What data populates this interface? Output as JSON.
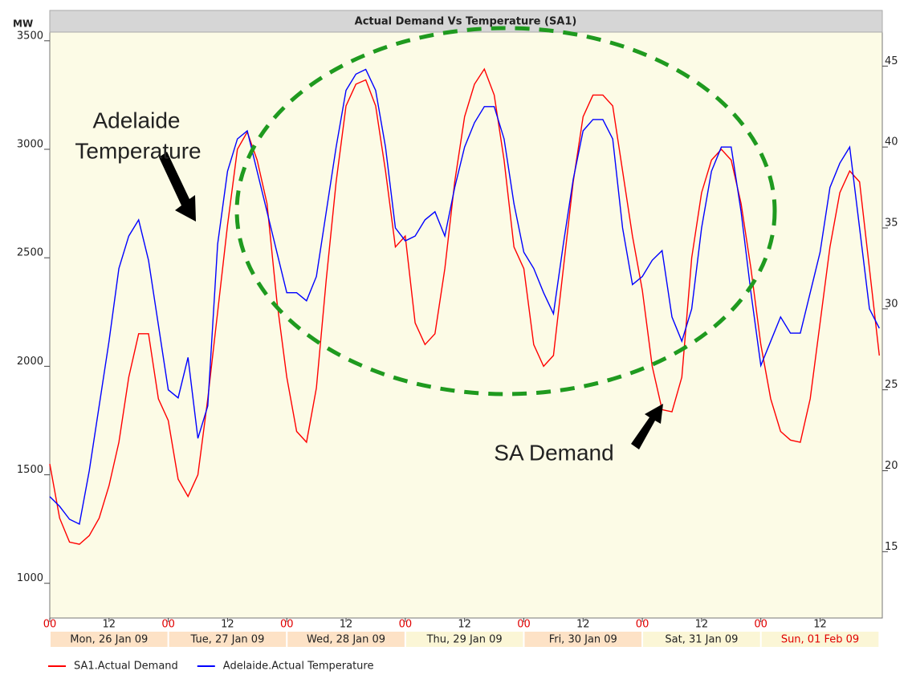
{
  "chart_data": {
    "type": "line",
    "title": "Actual Demand Vs Temperature (SA1)",
    "y_label": "MW",
    "annotations": [
      "Adelaide",
      "Temperature",
      "SA Demand"
    ],
    "x": [
      0,
      2,
      4,
      6,
      8,
      10,
      12,
      14,
      16,
      18,
      20,
      22,
      24,
      26,
      28,
      30,
      32,
      34,
      36,
      38,
      40,
      42,
      44,
      46,
      48,
      50,
      52,
      54,
      56,
      58,
      60,
      62,
      64,
      66,
      68,
      70,
      72,
      74,
      76,
      78,
      80,
      82,
      84,
      86,
      88,
      90,
      92,
      94,
      96,
      98,
      100,
      102,
      104,
      106,
      108,
      110,
      112,
      114,
      116,
      118,
      120,
      122,
      124,
      126,
      128,
      130,
      132,
      134,
      136,
      138,
      140,
      142,
      144,
      146,
      148,
      150,
      152,
      154,
      156,
      158,
      160,
      162,
      164,
      166,
      168
    ],
    "xlim": [
      0,
      168.6
    ],
    "xticks": [
      {
        "value": 0,
        "label": "00"
      },
      {
        "value": 12,
        "label": "12"
      },
      {
        "value": 24,
        "label": "00"
      },
      {
        "value": 36,
        "label": "12"
      },
      {
        "value": 48,
        "label": "00"
      },
      {
        "value": 60,
        "label": "12"
      },
      {
        "value": 72,
        "label": "00"
      },
      {
        "value": 84,
        "label": "12"
      },
      {
        "value": 96,
        "label": "00"
      },
      {
        "value": 108,
        "label": "12"
      },
      {
        "value": 120,
        "label": "00"
      },
      {
        "value": 132,
        "label": "12"
      },
      {
        "value": 144,
        "label": "00"
      },
      {
        "value": 156,
        "label": "12"
      }
    ],
    "x_days": [
      "Mon, 26 Jan 09",
      "Tue, 27 Jan 09",
      "Wed, 28 Jan 09",
      "Thu, 29 Jan 09",
      "Fri, 30 Jan 09",
      "Sat, 31 Jan 09",
      "Sun, 01 Feb 09"
    ],
    "ylim": [
      840,
      3540
    ],
    "yticks": [
      1000,
      1500,
      2000,
      2500,
      3000,
      3500
    ],
    "y2lim": [
      10.9,
      47.1
    ],
    "y2ticks": [
      15,
      20,
      25,
      30,
      35,
      40,
      45
    ],
    "grid": false,
    "series": [
      {
        "name": "SA1.Actual Demand",
        "color": "#ff0000",
        "values": [
          1550,
          1300,
          1190,
          1180,
          1220,
          1300,
          1450,
          1650,
          1950,
          2150,
          2150,
          1850,
          1750,
          1480,
          1400,
          1500,
          1850,
          2250,
          2650,
          3000,
          3080,
          2950,
          2750,
          2300,
          1950,
          1700,
          1650,
          1900,
          2400,
          2850,
          3200,
          3300,
          3320,
          3200,
          2900,
          2550,
          2600,
          2200,
          2100,
          2150,
          2450,
          2850,
          3150,
          3300,
          3370,
          3250,
          2950,
          2550,
          2450,
          2100,
          2000,
          2050,
          2450,
          2850,
          3150,
          3250,
          3250,
          3200,
          2900,
          2600,
          2350,
          2000,
          1800,
          1790,
          1950,
          2500,
          2800,
          2950,
          3000,
          2950,
          2750,
          2450,
          2100,
          1850,
          1700,
          1660,
          1650,
          1850,
          2200,
          2550,
          2800,
          2900,
          2850,
          2450,
          2050
        ]
      },
      {
        "name": "Adelaide.Actual Temperature",
        "color": "#0000ff",
        "axis": "y2",
        "values": [
          18.4,
          17.8,
          17,
          16.7,
          20,
          24,
          28,
          32.5,
          34.5,
          35.5,
          33,
          29,
          25,
          24.5,
          27,
          22,
          24,
          34,
          38.5,
          40.5,
          41,
          38.5,
          36,
          33.5,
          31,
          31,
          30.5,
          32,
          36,
          40,
          43.5,
          44.5,
          44.8,
          43.5,
          40,
          35,
          34.2,
          34.5,
          35.5,
          36,
          34.5,
          37.5,
          40,
          41.5,
          42.5,
          42.5,
          40.5,
          36.5,
          33.5,
          32.5,
          31,
          29.7,
          34,
          38,
          41,
          41.7,
          41.7,
          40.5,
          35,
          31.5,
          32,
          33,
          33.6,
          29.5,
          28,
          30,
          35,
          38.5,
          40,
          40,
          36,
          31,
          26.5,
          28,
          29.5,
          28.5,
          28.5,
          31,
          33.5,
          37.5,
          39,
          40,
          35,
          30,
          28.8
        ]
      }
    ]
  }
}
